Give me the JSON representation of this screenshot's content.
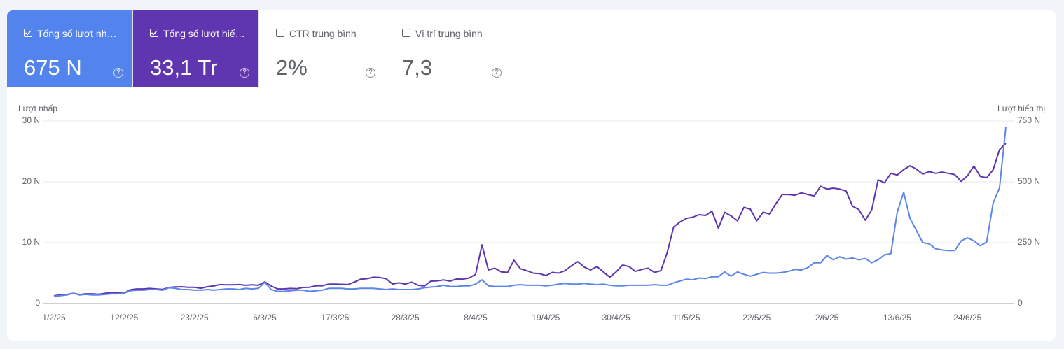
{
  "metrics": [
    {
      "label": "Tổng số lượt nh…",
      "value": "675 N",
      "checked": true,
      "color": "#5383ec"
    },
    {
      "label": "Tổng số lượt hiể…",
      "value": "33,1 Tr",
      "checked": true,
      "color": "#6035b0"
    },
    {
      "label": "CTR trung bình",
      "value": "2%",
      "checked": false,
      "color": "#ffffff"
    },
    {
      "label": "Vị trí trung bình",
      "value": "7,3",
      "checked": false,
      "color": "#ffffff"
    }
  ],
  "chart_data": {
    "type": "line",
    "y_label": "Lượt nhấp",
    "y2_label": "Lượt hiển thị",
    "categories": [
      "1/2/25",
      null,
      null,
      null,
      null,
      null,
      null,
      null,
      null,
      null,
      null,
      "12/2/25",
      null,
      null,
      null,
      null,
      null,
      null,
      null,
      null,
      null,
      null,
      "23/2/25",
      null,
      null,
      null,
      null,
      null,
      null,
      null,
      null,
      null,
      null,
      "6/3/25",
      null,
      null,
      null,
      null,
      null,
      null,
      null,
      null,
      null,
      null,
      "17/3/25",
      null,
      null,
      null,
      null,
      null,
      null,
      null,
      null,
      null,
      null,
      "28/3/25",
      null,
      null,
      null,
      null,
      null,
      null,
      null,
      null,
      null,
      null,
      "8/4/25",
      null,
      null,
      null,
      null,
      null,
      null,
      null,
      null,
      null,
      null,
      "19/4/25",
      null,
      null,
      null,
      null,
      null,
      null,
      null,
      null,
      null,
      null,
      "30/4/25",
      null,
      null,
      null,
      null,
      null,
      null,
      null,
      null,
      null,
      null,
      "11/5/25",
      null,
      null,
      null,
      null,
      null,
      null,
      null,
      null,
      null,
      null,
      "22/5/25",
      null,
      null,
      null,
      null,
      null,
      null,
      null,
      null,
      null,
      null,
      "2/6/25",
      null,
      null,
      null,
      null,
      null,
      null,
      null,
      null,
      null,
      null,
      "13/6/25",
      null,
      null,
      null,
      null,
      null,
      null,
      null,
      null,
      null,
      null,
      "24/6/25",
      null,
      null,
      null,
      null,
      null,
      null
    ],
    "ylim": [
      0,
      30000
    ],
    "yticks": [
      0,
      {
        "value": 10000,
        "label": "10 N"
      },
      {
        "value": 20000,
        "label": "20 N"
      },
      {
        "value": 30000,
        "label": "30 N"
      }
    ],
    "y2lim": [
      0,
      750000
    ],
    "y2ticks": [
      0,
      {
        "value": 250000,
        "label": "250 N"
      },
      {
        "value": 500000,
        "label": "500 N"
      },
      {
        "value": 750000,
        "label": "750 N"
      }
    ],
    "grid": true,
    "series": [
      {
        "color": "#5b85e8",
        "values": [
          1200,
          1300,
          1400,
          1700,
          1400,
          1500,
          1400,
          1400,
          1500,
          1600,
          1600,
          1700,
          2100,
          2200,
          2200,
          2300,
          2300,
          2200,
          2600,
          2500,
          2300,
          2300,
          2200,
          2200,
          2300,
          2200,
          2300,
          2400,
          2400,
          2300,
          2500,
          2400,
          2500,
          3500,
          2300,
          2000,
          2000,
          2100,
          2200,
          2200,
          2000,
          2100,
          2200,
          2500,
          2500,
          2500,
          2400,
          2400,
          2500,
          2500,
          2500,
          2400,
          2300,
          2400,
          2300,
          2300,
          2300,
          2400,
          2600,
          2700,
          2800,
          3000,
          2800,
          2800,
          2900,
          2900,
          3200,
          3900,
          2900,
          2800,
          2800,
          2800,
          3000,
          3100,
          3000,
          3000,
          3000,
          2900,
          3000,
          3200,
          3300,
          3200,
          3200,
          3300,
          3200,
          3100,
          3200,
          3000,
          2900,
          2900,
          3000,
          3000,
          3000,
          3000,
          3100,
          3000,
          3000,
          3400,
          3700,
          4000,
          3900,
          4200,
          4100,
          4400,
          4400,
          5200,
          4500,
          5200,
          4800,
          4500,
          4800,
          5100,
          5000,
          5000,
          5100,
          5300,
          5600,
          5500,
          5900,
          6700,
          6700,
          7900,
          7200,
          7700,
          7300,
          7500,
          7200,
          7400,
          6700,
          7200,
          8000,
          8200,
          15000,
          18300,
          14000,
          12000,
          10000,
          9800,
          9000,
          8800,
          8700,
          8700,
          10300,
          10800,
          10300,
          9500,
          10100,
          16500,
          19000,
          29000
        ]
      },
      {
        "color": "#5e35b1",
        "axis": "y2",
        "values": [
          32000,
          35000,
          37000,
          42000,
          37000,
          40000,
          40000,
          38000,
          42000,
          45000,
          44000,
          43000,
          57000,
          60000,
          60000,
          62000,
          60000,
          58000,
          66000,
          68000,
          69000,
          67000,
          67000,
          63000,
          69000,
          72000,
          78000,
          77000,
          77000,
          78000,
          75000,
          77000,
          75000,
          89000,
          72000,
          60000,
          60000,
          62000,
          61000,
          66000,
          67000,
          73000,
          73000,
          80000,
          80000,
          79000,
          78000,
          88000,
          100000,
          102000,
          108000,
          107000,
          102000,
          80000,
          85000,
          80000,
          88000,
          75000,
          72000,
          92000,
          93000,
          97000,
          92000,
          101000,
          100000,
          105000,
          120000,
          241000,
          138000,
          145000,
          130000,
          128000,
          178000,
          143000,
          135000,
          125000,
          123000,
          115000,
          128000,
          125000,
          135000,
          155000,
          172000,
          150000,
          138000,
          152000,
          130000,
          108000,
          130000,
          158000,
          152000,
          132000,
          140000,
          145000,
          128000,
          135000,
          210000,
          315000,
          335000,
          350000,
          355000,
          365000,
          362000,
          380000,
          310000,
          375000,
          360000,
          340000,
          395000,
          388000,
          340000,
          375000,
          368000,
          410000,
          448000,
          448000,
          445000,
          455000,
          448000,
          442000,
          482000,
          470000,
          474000,
          470000,
          462000,
          400000,
          386000,
          342000,
          385000,
          508000,
          496000,
          535000,
          528000,
          550000,
          566000,
          552000,
          532000,
          542000,
          535000,
          540000,
          535000,
          530000,
          502000,
          525000,
          565000,
          522000,
          517000,
          549000,
          632000,
          658000
        ]
      }
    ]
  }
}
